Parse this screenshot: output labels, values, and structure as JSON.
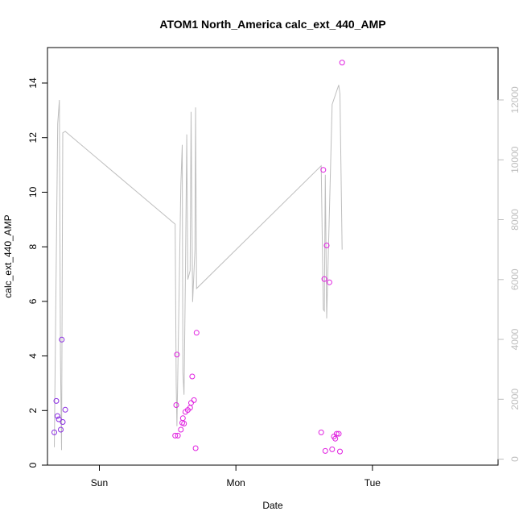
{
  "chart_data": {
    "type": "scatter",
    "title": "ATOM1 North_America calc_ext_440_AMP",
    "xlabel": "Date",
    "ylabel": "calc_ext_440_AMP",
    "x_ticks": [
      "Sun",
      "Mon",
      "Tue"
    ],
    "x_range_days": [
      -0.38,
      2.92
    ],
    "ylim": [
      0,
      15.3
    ],
    "y_ticks": [
      0,
      2,
      4,
      6,
      8,
      10,
      12,
      14
    ],
    "y2lim": [
      -200,
      13750
    ],
    "y2_ticks": [
      0,
      2000,
      4000,
      6000,
      8000,
      10000,
      12000
    ],
    "grid": false,
    "legend": "none",
    "colors": {
      "secondary_line": "#bebebe",
      "axis_right": "#bebebe",
      "points_early": "#8a2be2",
      "points_late": "#e020e0"
    },
    "series": [
      {
        "kind": "points",
        "points": [
          [
            -0.33,
            1.2
          ],
          [
            -0.315,
            2.35
          ],
          [
            -0.307,
            1.8
          ],
          [
            -0.297,
            1.68
          ],
          [
            -0.283,
            1.3
          ],
          [
            -0.275,
            4.6
          ],
          [
            -0.268,
            1.58
          ],
          [
            -0.25,
            2.03
          ],
          [
            0.555,
            1.08
          ],
          [
            0.563,
            2.2
          ],
          [
            0.568,
            4.05
          ],
          [
            0.575,
            1.08
          ],
          [
            0.597,
            1.3
          ],
          [
            0.607,
            1.55
          ],
          [
            0.612,
            1.72
          ],
          [
            0.62,
            1.52
          ],
          [
            0.63,
            1.95
          ],
          [
            0.648,
            2.02
          ],
          [
            0.665,
            2.1
          ],
          [
            0.672,
            2.28
          ],
          [
            0.68,
            3.25
          ],
          [
            0.693,
            2.38
          ],
          [
            0.705,
            0.62
          ],
          [
            0.712,
            4.85
          ],
          [
            1.625,
            1.2
          ],
          [
            1.64,
            10.82
          ],
          [
            1.648,
            6.82
          ],
          [
            1.655,
            0.52
          ],
          [
            1.665,
            8.05
          ],
          [
            1.685,
            6.7
          ],
          [
            1.705,
            0.58
          ],
          [
            1.718,
            1.05
          ],
          [
            1.728,
            0.97
          ],
          [
            1.738,
            1.15
          ],
          [
            1.753,
            1.15
          ],
          [
            1.762,
            0.5
          ],
          [
            1.778,
            14.75
          ]
        ]
      },
      {
        "kind": "line",
        "axis": "right",
        "points": [
          [
            -0.33,
            400
          ],
          [
            -0.305,
            11200
          ],
          [
            -0.293,
            12000
          ],
          [
            -0.285,
            3500
          ],
          [
            -0.277,
            300
          ],
          [
            -0.268,
            10900
          ],
          [
            -0.25,
            10950
          ],
          [
            0.555,
            7850
          ],
          [
            0.563,
            2500
          ],
          [
            0.568,
            1100
          ],
          [
            0.597,
            9200
          ],
          [
            0.607,
            10500
          ],
          [
            0.612,
            2900
          ],
          [
            0.62,
            2150
          ],
          [
            0.63,
            6000
          ],
          [
            0.64,
            10850
          ],
          [
            0.648,
            6000
          ],
          [
            0.665,
            6300
          ],
          [
            0.672,
            11600
          ],
          [
            0.683,
            5250
          ],
          [
            0.7,
            7000
          ],
          [
            0.705,
            11750
          ],
          [
            0.712,
            5700
          ],
          [
            1.625,
            9800
          ],
          [
            1.64,
            5000
          ],
          [
            1.648,
            4950
          ],
          [
            1.655,
            9500
          ],
          [
            1.665,
            4700
          ],
          [
            1.705,
            11850
          ],
          [
            1.753,
            12500
          ],
          [
            1.762,
            12200
          ],
          [
            1.778,
            7000
          ]
        ]
      }
    ]
  }
}
